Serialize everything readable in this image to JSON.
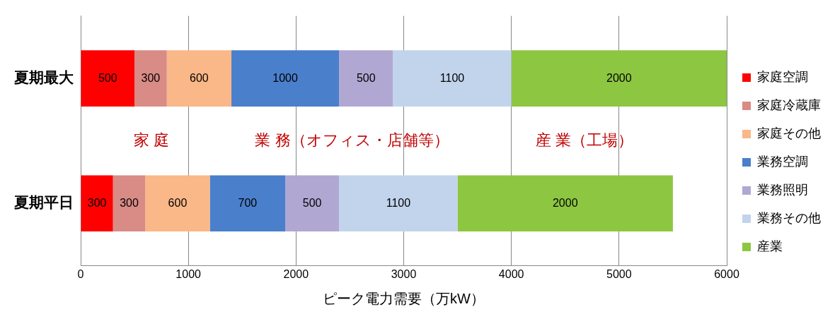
{
  "chart_data": {
    "type": "bar",
    "orientation": "horizontal",
    "stacked": true,
    "xlabel": "ピーク電力需要（万kW）",
    "categories": [
      "夏期最大",
      "夏期平日"
    ],
    "series": [
      {
        "name": "家庭空調",
        "color": "#ff0000",
        "values": [
          500,
          300
        ]
      },
      {
        "name": "家庭冷蔵庫",
        "color": "#d98b86",
        "values": [
          300,
          300
        ]
      },
      {
        "name": "家庭その他",
        "color": "#fab787",
        "values": [
          600,
          600
        ]
      },
      {
        "name": "業務空調",
        "color": "#4a7fcb",
        "values": [
          1000,
          700
        ]
      },
      {
        "name": "業務照明",
        "color": "#b0a8d2",
        "values": [
          500,
          500
        ]
      },
      {
        "name": "業務その他",
        "color": "#c2d3ec",
        "values": [
          1100,
          1100
        ]
      },
      {
        "name": "産業",
        "color": "#8dc641",
        "values": [
          2000,
          2000
        ]
      }
    ],
    "xlim": [
      0,
      6000
    ],
    "xticks": [
      0,
      1000,
      2000,
      3000,
      4000,
      5000,
      6000
    ],
    "grid": "x",
    "legend": "right",
    "data_labels": true,
    "annotations": [
      "家 庭",
      "業 務（オフィス・店舗等）",
      "産 業（工場）"
    ]
  }
}
